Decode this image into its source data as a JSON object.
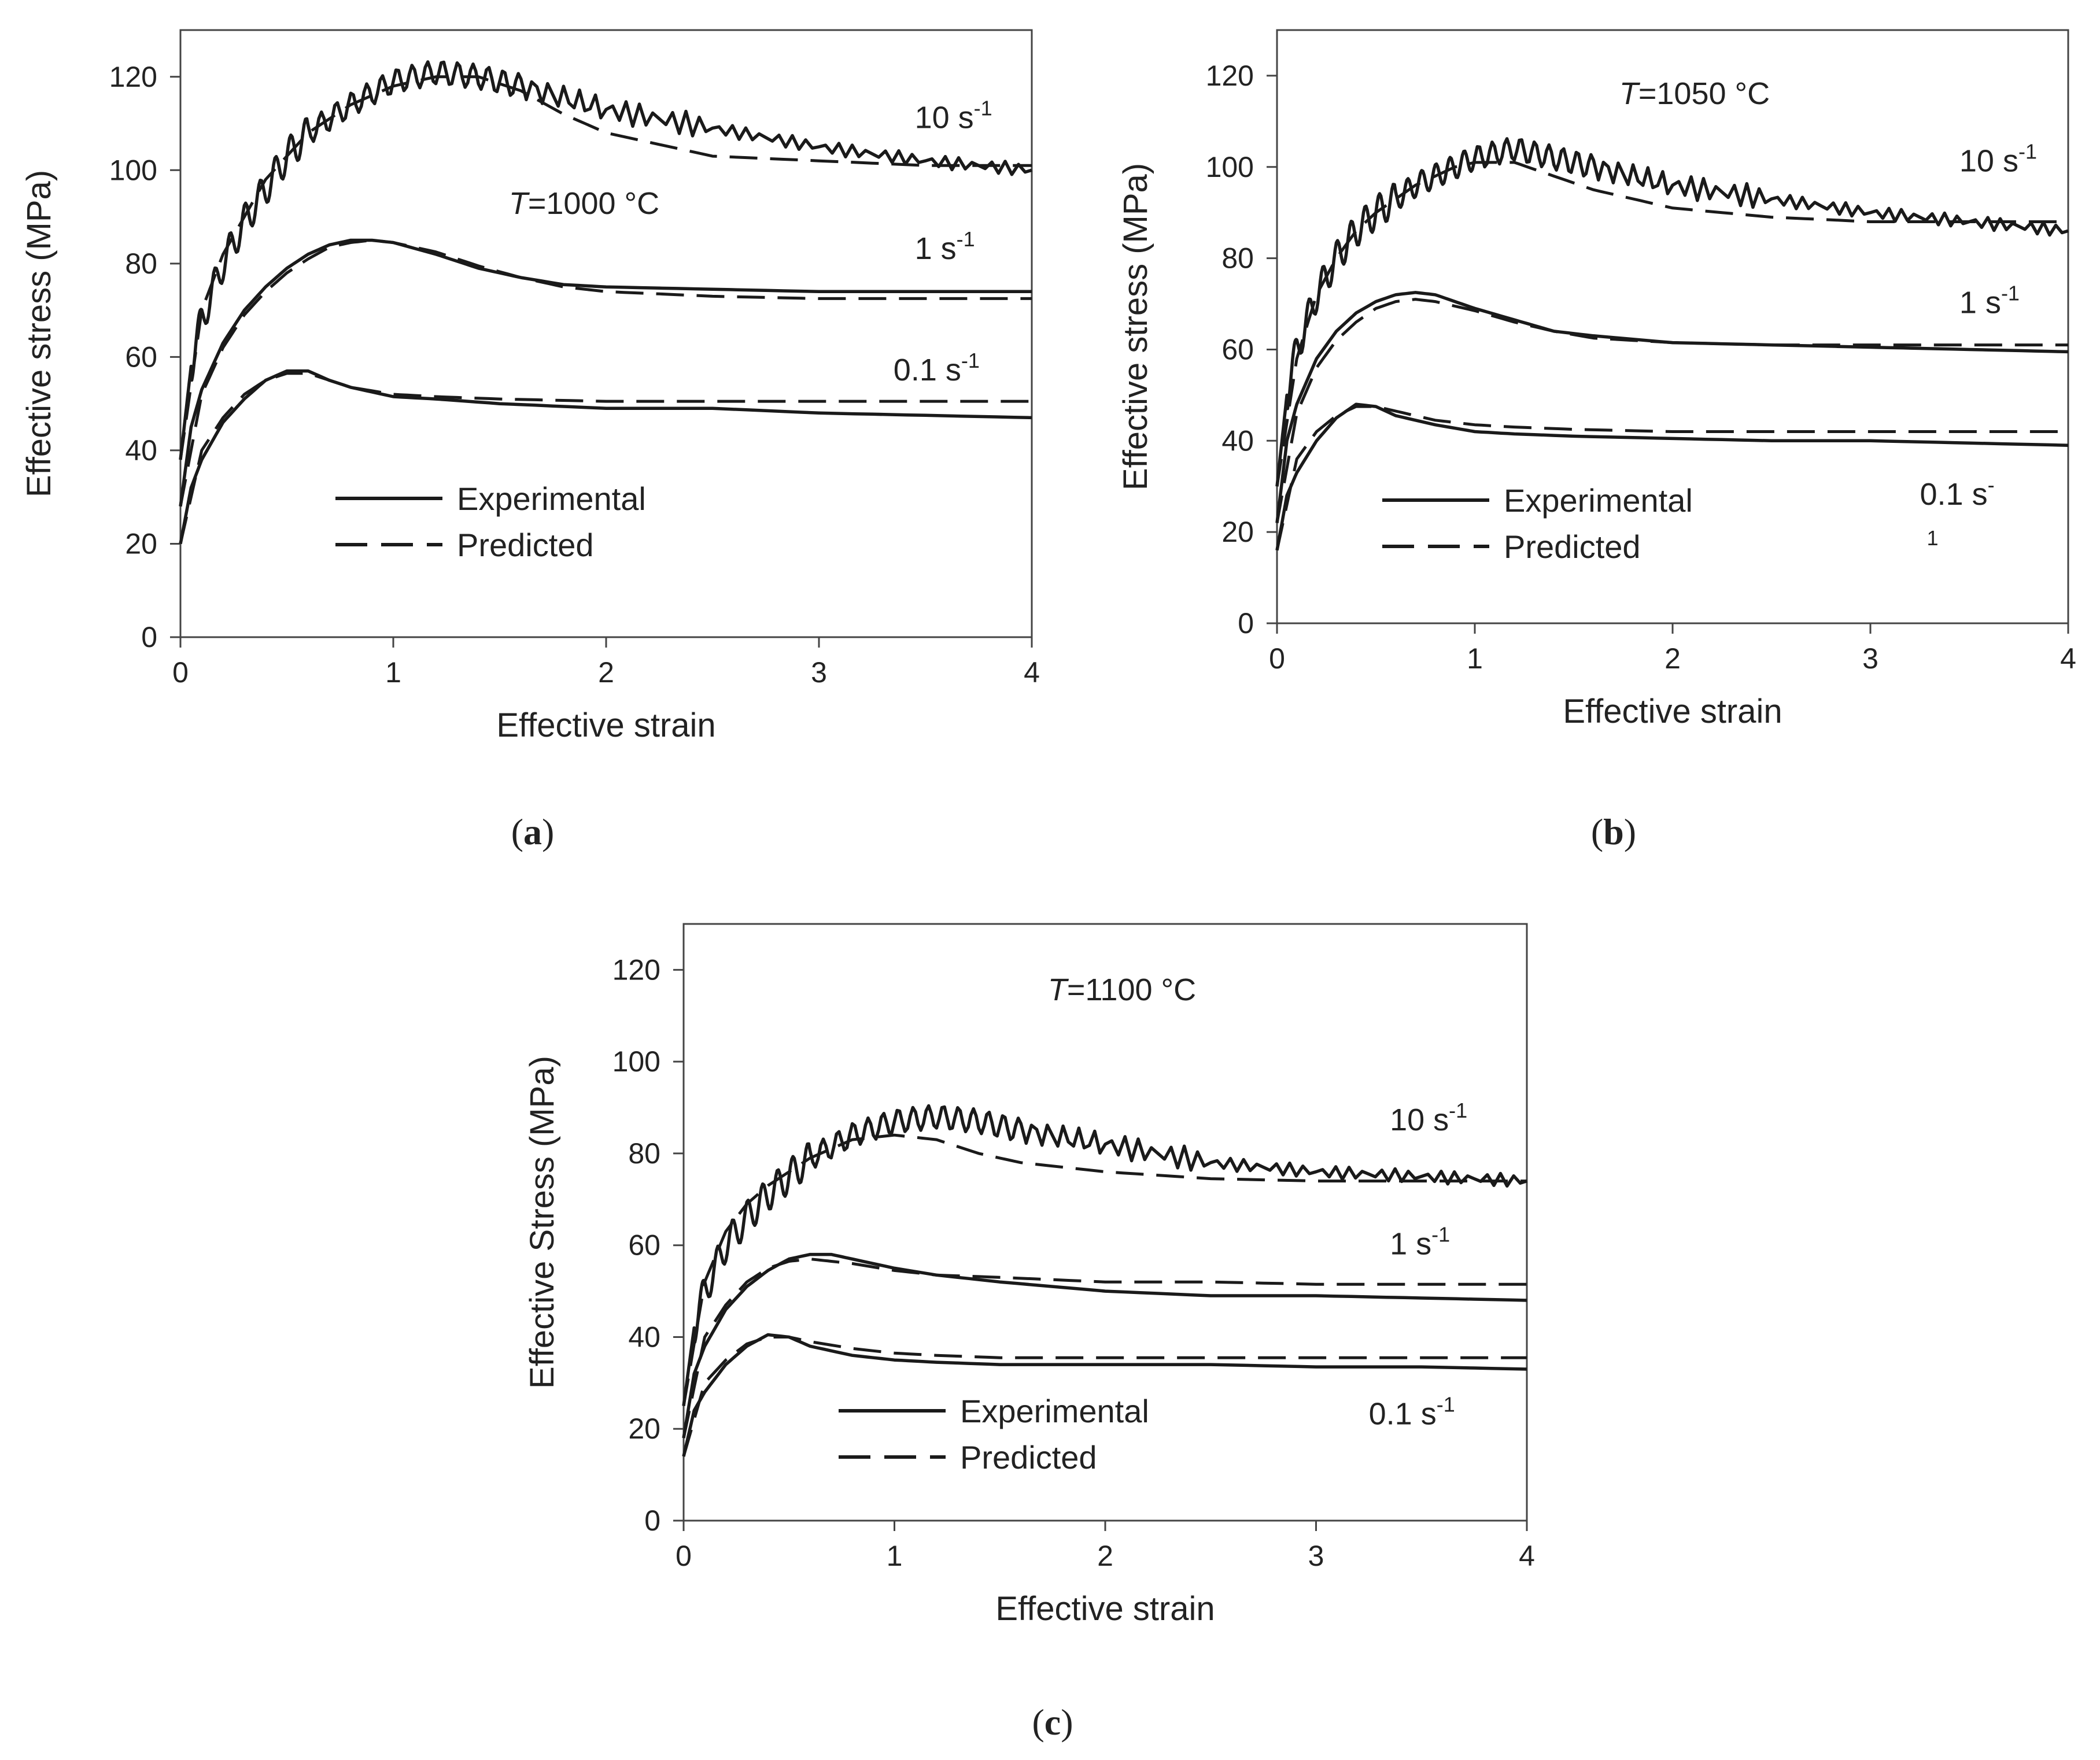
{
  "chart_data": [
    {
      "type": "line",
      "panel_label": "a",
      "title": "T=1000 °C",
      "title_italic_part": "T",
      "title_rest": "=1000 °C",
      "xlabel": "Effective strain",
      "ylabel": "Effective stress (MPa)",
      "xlim": [
        0,
        4
      ],
      "ylim": [
        0,
        130
      ],
      "xticks": [
        0,
        1,
        2,
        3,
        4
      ],
      "yticks": [
        0,
        20,
        40,
        60,
        80,
        100,
        120
      ],
      "legend": [
        {
          "label": "Experimental",
          "style": "solid"
        },
        {
          "label": "Predicted",
          "style": "dashed"
        }
      ],
      "annotations": [
        {
          "base": "10 s",
          "sup": "-1",
          "x": 3.45,
          "y": 109
        },
        {
          "base": "1 s",
          "sup": "-1",
          "x": 3.45,
          "y": 81
        },
        {
          "base": "0.1 s",
          "sup": "-1",
          "x": 3.35,
          "y": 55
        }
      ],
      "series": [
        {
          "name": "Experimental 10 s-1",
          "style": "solid",
          "serrated": true,
          "x": [
            0,
            0.05,
            0.1,
            0.2,
            0.3,
            0.4,
            0.5,
            0.6,
            0.8,
            1.0,
            1.2,
            1.4,
            1.6,
            2.0,
            2.5,
            3.0,
            3.5,
            4.0
          ],
          "y": [
            38,
            58,
            68,
            80,
            89,
            96,
            103,
            108,
            114,
            119,
            121,
            120,
            118,
            113,
            109,
            105,
            102,
            100
          ]
        },
        {
          "name": "Predicted 10 s-1",
          "style": "dashed",
          "serrated": false,
          "x": [
            0,
            0.1,
            0.2,
            0.4,
            0.6,
            0.8,
            1.0,
            1.2,
            1.4,
            1.6,
            1.8,
            2.0,
            2.5,
            3.0,
            3.5,
            4.0
          ],
          "y": [
            38,
            70,
            82,
            98,
            108,
            114,
            118,
            120,
            120,
            117,
            112,
            108,
            103,
            102,
            101,
            101
          ]
        },
        {
          "name": "Experimental 1 s-1",
          "style": "solid",
          "serrated": false,
          "x": [
            0,
            0.05,
            0.1,
            0.2,
            0.3,
            0.4,
            0.5,
            0.6,
            0.7,
            0.8,
            0.9,
            1.0,
            1.2,
            1.4,
            1.6,
            1.8,
            2.0,
            2.5,
            3.0,
            3.5,
            4.0
          ],
          "y": [
            28,
            45,
            53,
            63,
            70,
            75,
            79,
            82,
            84,
            85,
            85,
            84.5,
            82,
            79,
            77,
            75.5,
            75,
            74.5,
            74,
            74,
            74
          ]
        },
        {
          "name": "Predicted 1 s-1",
          "style": "dashed",
          "serrated": false,
          "x": [
            0,
            0.1,
            0.2,
            0.3,
            0.4,
            0.5,
            0.6,
            0.7,
            0.8,
            0.9,
            1.0,
            1.2,
            1.4,
            1.6,
            1.8,
            2.0,
            2.5,
            3.0,
            3.5,
            4.0
          ],
          "y": [
            28,
            52,
            62,
            69,
            74,
            78,
            81,
            83.5,
            84.5,
            85,
            84.5,
            82.5,
            79.5,
            77,
            75,
            74,
            73,
            72.5,
            72.5,
            72.5
          ]
        },
        {
          "name": "Experimental 0.1 s-1",
          "style": "solid",
          "serrated": false,
          "x": [
            0,
            0.05,
            0.1,
            0.2,
            0.3,
            0.4,
            0.5,
            0.6,
            0.7,
            0.8,
            1.0,
            1.2,
            1.5,
            2.0,
            2.5,
            3.0,
            3.5,
            4.0
          ],
          "y": [
            20,
            32,
            38,
            46,
            51,
            55,
            57,
            57,
            55,
            53.5,
            51.5,
            51,
            50,
            49,
            49,
            48,
            47.5,
            47
          ]
        },
        {
          "name": "Predicted 0.1 s-1",
          "style": "dashed",
          "serrated": false,
          "x": [
            0,
            0.1,
            0.2,
            0.3,
            0.4,
            0.5,
            0.6,
            0.7,
            0.8,
            1.0,
            1.2,
            1.5,
            2.0,
            2.5,
            3.0,
            3.5,
            4.0
          ],
          "y": [
            20,
            40,
            47,
            52,
            55,
            56.5,
            56.5,
            55,
            53.5,
            52,
            51.5,
            51,
            50.5,
            50.5,
            50.5,
            50.5,
            50.5
          ]
        }
      ]
    },
    {
      "type": "line",
      "panel_label": "b",
      "title": "T=1050 °C",
      "title_italic_part": "T",
      "title_rest": "=1050 °C",
      "xlabel": "Effective strain",
      "ylabel": "Effective stress (MPa)",
      "xlim": [
        0,
        4
      ],
      "ylim": [
        0,
        130
      ],
      "xticks": [
        0,
        1,
        2,
        3,
        4
      ],
      "yticks": [
        0,
        20,
        40,
        60,
        80,
        100,
        120
      ],
      "legend": [
        {
          "label": "Experimental",
          "style": "solid"
        },
        {
          "label": "Predicted",
          "style": "dashed"
        }
      ],
      "annotations": [
        {
          "base": "10 s",
          "sup": "-1",
          "x": 3.45,
          "y": 99
        },
        {
          "base": "1 s",
          "sup": "-1",
          "x": 3.45,
          "y": 68
        },
        {
          "base": "0.1 s",
          "sup": "-",
          "x": 3.25,
          "y": 26,
          "sub_line": "1"
        }
      ],
      "series": [
        {
          "name": "Experimental 10 s-1",
          "style": "solid",
          "serrated": true,
          "x": [
            0,
            0.05,
            0.1,
            0.2,
            0.3,
            0.4,
            0.5,
            0.6,
            0.7,
            0.8,
            0.9,
            1.0,
            1.2,
            1.4,
            1.6,
            2.0,
            2.5,
            3.0,
            3.5,
            4.0
          ],
          "y": [
            30,
            50,
            60,
            72,
            80,
            86,
            90,
            93,
            96,
            98,
            100,
            102,
            104,
            102,
            100,
            96,
            93,
            90,
            88,
            86
          ]
        },
        {
          "name": "Predicted 10 s-1",
          "style": "dashed",
          "serrated": false,
          "x": [
            0,
            0.1,
            0.2,
            0.3,
            0.4,
            0.5,
            0.6,
            0.7,
            0.8,
            0.9,
            1.0,
            1.2,
            1.4,
            1.6,
            1.8,
            2.0,
            2.5,
            3.0,
            3.5,
            4.0
          ],
          "y": [
            30,
            58,
            72,
            80,
            86,
            90,
            93,
            96,
            98,
            100,
            101,
            101,
            98,
            95,
            93,
            91,
            89,
            88,
            88,
            88
          ]
        },
        {
          "name": "Experimental 1 s-1",
          "style": "solid",
          "serrated": false,
          "x": [
            0,
            0.05,
            0.1,
            0.2,
            0.3,
            0.4,
            0.5,
            0.6,
            0.7,
            0.8,
            0.9,
            1.0,
            1.2,
            1.4,
            1.6,
            2.0,
            2.5,
            3.0,
            3.5,
            4.0
          ],
          "y": [
            22,
            40,
            48,
            58,
            64,
            68,
            70.5,
            72,
            72.5,
            72,
            70.5,
            69,
            66.5,
            64,
            63,
            61.5,
            61,
            60.5,
            60,
            59.5
          ]
        },
        {
          "name": "Predicted 1 s-1",
          "style": "dashed",
          "serrated": false,
          "x": [
            0,
            0.1,
            0.2,
            0.3,
            0.4,
            0.5,
            0.6,
            0.7,
            0.8,
            0.9,
            1.0,
            1.2,
            1.4,
            1.6,
            2.0,
            2.5,
            3.0,
            3.5,
            4.0
          ],
          "y": [
            22,
            46,
            56,
            62,
            66,
            69,
            70.5,
            71,
            70.5,
            69.5,
            68.5,
            66,
            64,
            62.5,
            61.5,
            61,
            61,
            61,
            61
          ]
        },
        {
          "name": "Experimental 0.1 s-1",
          "style": "solid",
          "serrated": false,
          "x": [
            0,
            0.05,
            0.1,
            0.2,
            0.3,
            0.4,
            0.5,
            0.6,
            0.8,
            1.0,
            1.2,
            1.5,
            2.0,
            2.5,
            3.0,
            3.5,
            4.0
          ],
          "y": [
            16,
            28,
            33,
            40,
            45,
            48,
            47.5,
            45.5,
            43.5,
            42,
            41.5,
            41,
            40.5,
            40,
            40,
            39.5,
            39
          ]
        },
        {
          "name": "Predicted 0.1 s-1",
          "style": "dashed",
          "serrated": false,
          "x": [
            0,
            0.1,
            0.2,
            0.3,
            0.4,
            0.5,
            0.6,
            0.8,
            1.0,
            1.2,
            1.5,
            2.0,
            2.5,
            3.0,
            3.5,
            4.0
          ],
          "y": [
            16,
            36,
            42,
            45.5,
            47.5,
            47.5,
            46.5,
            44.5,
            43.5,
            43,
            42.5,
            42,
            42,
            42,
            42,
            42
          ]
        }
      ]
    },
    {
      "type": "line",
      "panel_label": "c",
      "title": "T=1100 °C",
      "title_italic_part": "T",
      "title_rest": "=1100 °C",
      "xlabel": "Effective strain",
      "ylabel": "Effective Stress (MPa)",
      "xlim": [
        0,
        4
      ],
      "ylim": [
        0,
        130
      ],
      "xticks": [
        0,
        1,
        2,
        3,
        4
      ],
      "yticks": [
        0,
        20,
        40,
        60,
        80,
        100,
        120
      ],
      "legend": [
        {
          "label": "Experimental",
          "style": "solid"
        },
        {
          "label": "Predicted",
          "style": "dashed"
        }
      ],
      "annotations": [
        {
          "base": "10 s",
          "sup": "-1",
          "x": 3.35,
          "y": 85
        },
        {
          "base": "1 s",
          "sup": "-1",
          "x": 3.35,
          "y": 58
        },
        {
          "base": "0.1 s",
          "sup": "-1",
          "x": 3.25,
          "y": 21
        }
      ],
      "series": [
        {
          "name": "Experimental 10 s-1",
          "style": "solid",
          "serrated": true,
          "x": [
            0,
            0.05,
            0.1,
            0.2,
            0.3,
            0.4,
            0.5,
            0.6,
            0.8,
            1.0,
            1.2,
            1.4,
            1.6,
            2.0,
            2.5,
            3.0,
            3.5,
            4.0
          ],
          "y": [
            25,
            42,
            50,
            60,
            66,
            71,
            75,
            79,
            84,
            87,
            88,
            87,
            85,
            82,
            78,
            76,
            75,
            74
          ]
        },
        {
          "name": "Predicted 10 s-1",
          "style": "dashed",
          "serrated": false,
          "x": [
            0,
            0.1,
            0.2,
            0.3,
            0.4,
            0.6,
            0.8,
            1.0,
            1.2,
            1.4,
            1.6,
            2.0,
            2.5,
            3.0,
            3.5,
            4.0
          ],
          "y": [
            25,
            52,
            63,
            69,
            73,
            79,
            83,
            84,
            83,
            80,
            78,
            76,
            74.5,
            74,
            74,
            74
          ]
        },
        {
          "name": "Experimental 1 s-1",
          "style": "solid",
          "serrated": false,
          "x": [
            0,
            0.05,
            0.1,
            0.2,
            0.3,
            0.4,
            0.5,
            0.6,
            0.7,
            0.8,
            1.0,
            1.2,
            1.5,
            2.0,
            2.5,
            3.0,
            3.5,
            4.0
          ],
          "y": [
            18,
            32,
            38,
            46,
            51,
            54.5,
            57,
            58,
            58,
            57,
            55,
            53.5,
            52,
            50,
            49,
            49,
            48.5,
            48
          ]
        },
        {
          "name": "Predicted 1 s-1",
          "style": "dashed",
          "serrated": false,
          "x": [
            0,
            0.1,
            0.2,
            0.3,
            0.4,
            0.5,
            0.6,
            0.7,
            0.8,
            1.0,
            1.2,
            1.5,
            2.0,
            2.5,
            3.0,
            3.5,
            4.0
          ],
          "y": [
            18,
            40,
            47,
            52,
            55,
            56.5,
            57,
            56.5,
            56,
            54.5,
            53.5,
            53,
            52,
            52,
            51.5,
            51.5,
            51.5
          ]
        },
        {
          "name": "Experimental 0.1 s-1",
          "style": "solid",
          "serrated": false,
          "x": [
            0,
            0.05,
            0.1,
            0.2,
            0.3,
            0.4,
            0.5,
            0.6,
            0.8,
            1.0,
            1.2,
            1.5,
            2.0,
            2.5,
            3.0,
            3.5,
            4.0
          ],
          "y": [
            14,
            24,
            28,
            34,
            38,
            40.5,
            40,
            38,
            36,
            35,
            34.5,
            34,
            34,
            34,
            33.5,
            33.5,
            33
          ]
        },
        {
          "name": "Predicted 0.1 s-1",
          "style": "dashed",
          "serrated": false,
          "x": [
            0,
            0.1,
            0.2,
            0.3,
            0.4,
            0.5,
            0.6,
            0.8,
            1.0,
            1.2,
            1.5,
            2.0,
            2.5,
            3.0,
            3.5,
            4.0
          ],
          "y": [
            14,
            30,
            35,
            38.5,
            40,
            40,
            39,
            37.5,
            36.5,
            36,
            35.5,
            35.5,
            35.5,
            35.5,
            35.5,
            35.5
          ]
        }
      ]
    }
  ]
}
